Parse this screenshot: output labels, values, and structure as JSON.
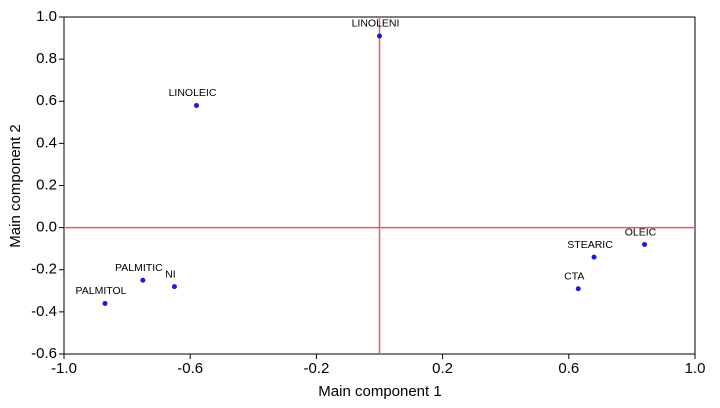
{
  "chart_data": {
    "type": "scatter",
    "xlabel": "Main component 1",
    "ylabel": "Main component 2",
    "series": [
      {
        "name": null,
        "color": "#1a1ad8",
        "labels": [
          "LINOLENI",
          "LINOLEIC",
          "PALMITIC",
          "NI",
          "PALMITOL",
          "STEARIC",
          "CTA",
          "OLEIC"
        ],
        "x": [
          0.0,
          -0.58,
          -0.75,
          -0.65,
          -0.87,
          0.68,
          0.63,
          0.84
        ],
        "values": [
          0.91,
          0.58,
          -0.25,
          -0.28,
          -0.36,
          -0.14,
          -0.29,
          -0.08
        ]
      }
    ],
    "xlim": [
      -1.0,
      1.0
    ],
    "xticks": [
      {
        "value": -1.0,
        "label": "-1.0"
      },
      -0.6,
      -0.2,
      0.2,
      0.6,
      {
        "value": 1.0,
        "label": "1.0"
      }
    ],
    "ylim": [
      -0.6,
      1.0
    ],
    "yticks": [
      {
        "value": 1.0,
        "label": "1.0"
      },
      0.8,
      0.6,
      0.4,
      0.2,
      {
        "value": 0.0,
        "label": "0.0"
      },
      -0.2,
      -0.4,
      -0.6
    ],
    "zero_lines": true,
    "zero_line_color": "#e06060"
  }
}
